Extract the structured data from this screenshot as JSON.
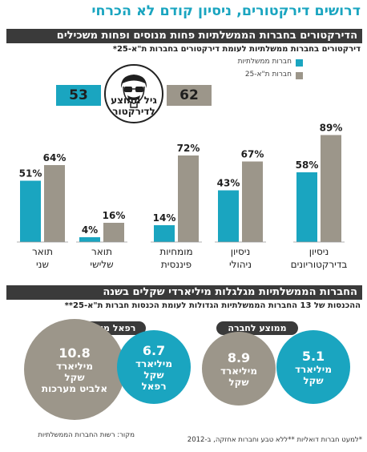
{
  "headline": "דרושים דירקטורים, ניסיון קודם לא הכרחי",
  "section1": {
    "title": "הדירקטורים בחברות הממשלתיות פחות מנוסים ופחות משכילים",
    "subtitle": "דירקטורים בחברות ממשלתיות לעומת דירקטורים בחברות ת\"א-25*"
  },
  "legend": {
    "gov_label": "חברות ממשלתיות",
    "ta_label": "חברות ת\"א-25",
    "gov_color": "#1aa5c0",
    "ta_color": "#9c968a"
  },
  "age": {
    "label_line1": "גיל ממוצע",
    "label_line2": "לדירקטור",
    "gov": "53",
    "ta": "62",
    "icon": "director-face-icon"
  },
  "chart_data": {
    "type": "bar",
    "categories": [
      "ניסיון בדירקטוריונים",
      "ניסיון ניהולי",
      "מומחיות פיננסית",
      "תואר שלישי",
      "תואר שני"
    ],
    "category_lines": [
      [
        "ניסיון",
        "בדירקטוריונים"
      ],
      [
        "ניסיון",
        "ניהולי"
      ],
      [
        "מומחיות",
        "פיננסית"
      ],
      [
        "תואר",
        "שלישי"
      ],
      [
        "תואר",
        "שני"
      ]
    ],
    "series": [
      {
        "name": "חברות ממשלתיות",
        "values": [
          58,
          43,
          14,
          4,
          51
        ],
        "labels": [
          "58%",
          "43%",
          "14%",
          "4%",
          "51%"
        ]
      },
      {
        "name": "חברות ת\"א-25",
        "values": [
          89,
          67,
          72,
          16,
          64
        ],
        "labels": [
          "89%",
          "67%",
          "72%",
          "16%",
          "64%"
        ]
      }
    ],
    "ylim": [
      0,
      100
    ]
  },
  "section2": {
    "title": "החברות הממשלתיות מגלגלות מיליארדי שקלים בשנה",
    "subtitle": "ההכנסות של 13 החברות הממשלתיות הגדולות לעומת הכנסות חברות ת\"א-25**"
  },
  "avg_group": {
    "pill": "ממוצע לחברה",
    "gov_line1": "5.1",
    "gov_line2": "מיליארד",
    "gov_line3": "שקל",
    "ta_line1": "8.9",
    "ta_line2": "מיליארד",
    "ta_line3": "שקל"
  },
  "rafael_group": {
    "pill": "רפאל מול אלביט",
    "gov_line1": "6.7",
    "gov_line2": "מיליארד",
    "gov_line3": "שקל",
    "gov_line4": "רפאל",
    "ta_line1": "10.8",
    "ta_line2": "מיליארד",
    "ta_line3": "שקל",
    "ta_line4": "אלביט מערכות"
  },
  "footnotes": {
    "left": "*למעט חברות דואליות   **ללא טבע וחברות אחזקה, ב-2012",
    "source": "מקור: רשות החברות הממשלתיות"
  }
}
